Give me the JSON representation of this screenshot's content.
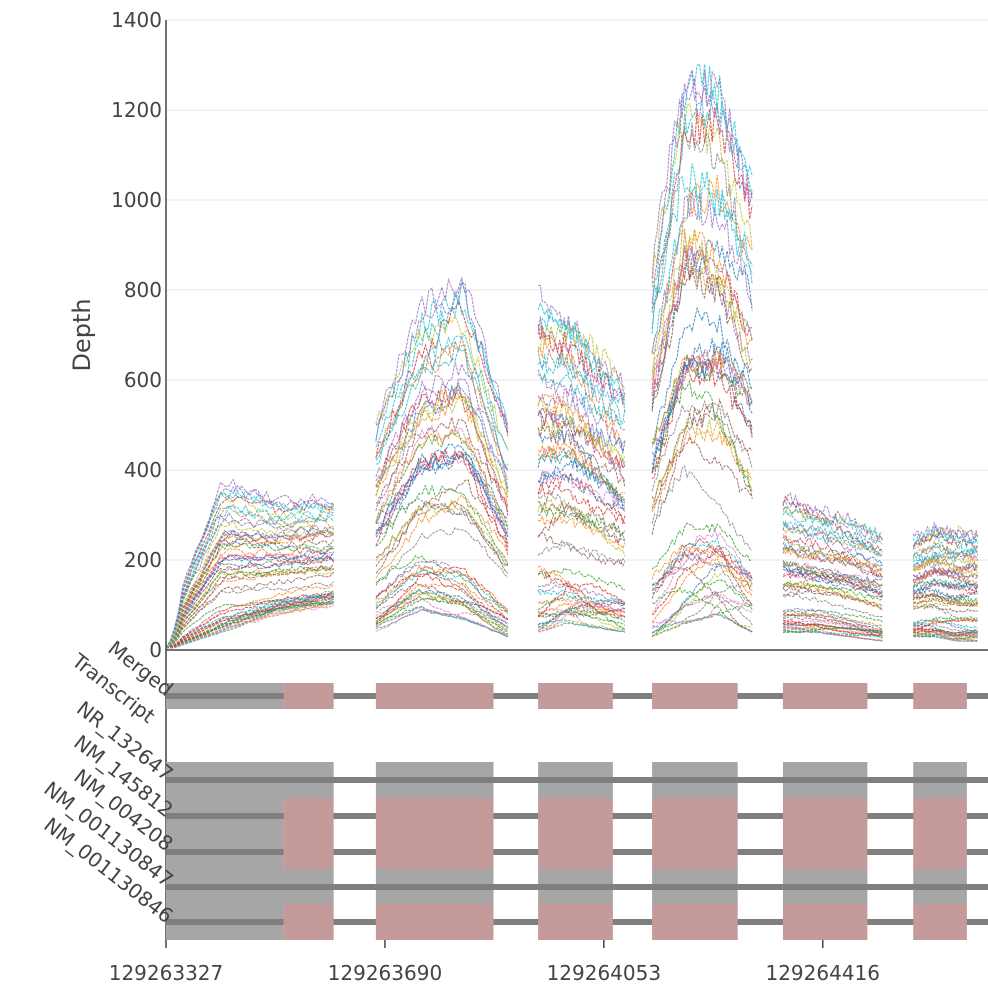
{
  "chart_data": {
    "type": "line",
    "title": "",
    "ylabel": "Depth",
    "xlabel": "",
    "ylim": [
      0,
      1400
    ],
    "yticks": [
      0,
      200,
      400,
      600,
      800,
      1000,
      1200,
      1400
    ],
    "xlim": [
      129263327,
      129264690
    ],
    "xticks": [
      129263327,
      129263690,
      129264053,
      129264416
    ],
    "xtick_labels": [
      "129263327",
      "129263690",
      "129264053",
      "129264416"
    ],
    "grid": true,
    "legend": "none",
    "series_count": 60,
    "exons": [
      {
        "start": 129263327,
        "end": 129263605,
        "coverage_bottom": [
          0,
          40,
          80,
          100
        ],
        "coverage_top": [
          40,
          380,
          340,
          340
        ],
        "low_edge": 5
      },
      {
        "start": 129263675,
        "end": 129263894,
        "coverage_bottom": [
          40,
          90,
          70,
          30
        ],
        "coverage_top": [
          520,
          760,
          820,
          500
        ],
        "low_edge": 30
      },
      {
        "start": 129263944,
        "end": 129264088,
        "coverage_bottom": [
          40,
          60,
          50,
          40
        ],
        "coverage_top": [
          790,
          760,
          680,
          610
        ],
        "low_edge": 40
      },
      {
        "start": 129264133,
        "end": 129264299,
        "coverage_bottom": [
          30,
          60,
          80,
          40
        ],
        "coverage_top": [
          860,
          1320,
          1290,
          1050
        ],
        "low_edge": 30
      },
      {
        "start": 129264350,
        "end": 129264515,
        "coverage_bottom": [
          40,
          40,
          30,
          20
        ],
        "coverage_top": [
          340,
          320,
          300,
          260
        ],
        "low_edge": 20
      },
      {
        "start": 129264566,
        "end": 129264673,
        "coverage_bottom": [
          30,
          30,
          20,
          20
        ],
        "coverage_top": [
          250,
          280,
          270,
          265
        ],
        "low_edge": 15
      }
    ],
    "colors": [
      "#1f77b4",
      "#ff7f0e",
      "#2ca02c",
      "#d62728",
      "#9467bd",
      "#8c564b",
      "#e377c2",
      "#7f7f7f",
      "#bcbd22",
      "#17becf"
    ]
  },
  "tracks": {
    "labels": [
      "Merged",
      "Transcript",
      "NR_132647",
      "NM_145812",
      "NM_004208",
      "NM_001130847",
      "NM_001130846"
    ],
    "intron_color": "#7f7f7f",
    "utr_color": "#a6a6a6",
    "cds_color": "#c49a9a",
    "merged": {
      "utr_segments": [
        [
          129263327,
          129263522
        ]
      ],
      "cds_segments": [
        [
          129263522,
          129263605
        ],
        [
          129263675,
          129263870
        ],
        [
          129263944,
          129264068
        ],
        [
          129264133,
          129264275
        ],
        [
          129264350,
          129264490
        ],
        [
          129264566,
          129264655
        ]
      ]
    },
    "rows": [
      {
        "name": "NR_132647",
        "utr_segments": [
          [
            129263327,
            129263605
          ],
          [
            129263675,
            129263870
          ],
          [
            129263944,
            129264068
          ],
          [
            129264133,
            129264275
          ],
          [
            129264350,
            129264490
          ],
          [
            129264566,
            129264655
          ]
        ],
        "cds_segments": []
      },
      {
        "name": "NM_145812",
        "utr_segments": [
          [
            129263327,
            129263522
          ]
        ],
        "cds_segments": [
          [
            129263522,
            129263605
          ],
          [
            129263675,
            129263870
          ],
          [
            129263944,
            129264068
          ],
          [
            129264133,
            129264275
          ],
          [
            129264350,
            129264490
          ],
          [
            129264566,
            129264655
          ]
        ]
      },
      {
        "name": "NM_004208",
        "utr_segments": [
          [
            129263327,
            129263522
          ]
        ],
        "cds_segments": [
          [
            129263522,
            129263605
          ],
          [
            129263675,
            129263870
          ],
          [
            129263944,
            129264068
          ],
          [
            129264133,
            129264275
          ],
          [
            129264350,
            129264490
          ],
          [
            129264566,
            129264655
          ]
        ]
      },
      {
        "name": "NM_001130847",
        "utr_segments": [
          [
            129263327,
            129263605
          ],
          [
            129263675,
            129263870
          ],
          [
            129263944,
            129264068
          ],
          [
            129264133,
            129264275
          ],
          [
            129264350,
            129264490
          ],
          [
            129264566,
            129264655
          ]
        ],
        "cds_segments": []
      },
      {
        "name": "NM_001130846",
        "utr_segments": [
          [
            129263327,
            129263522
          ]
        ],
        "cds_segments": [
          [
            129263522,
            129263605
          ],
          [
            129263675,
            129263870
          ],
          [
            129263944,
            129264068
          ],
          [
            129264133,
            129264275
          ],
          [
            129264350,
            129264490
          ],
          [
            129264566,
            129264655
          ]
        ]
      }
    ]
  }
}
